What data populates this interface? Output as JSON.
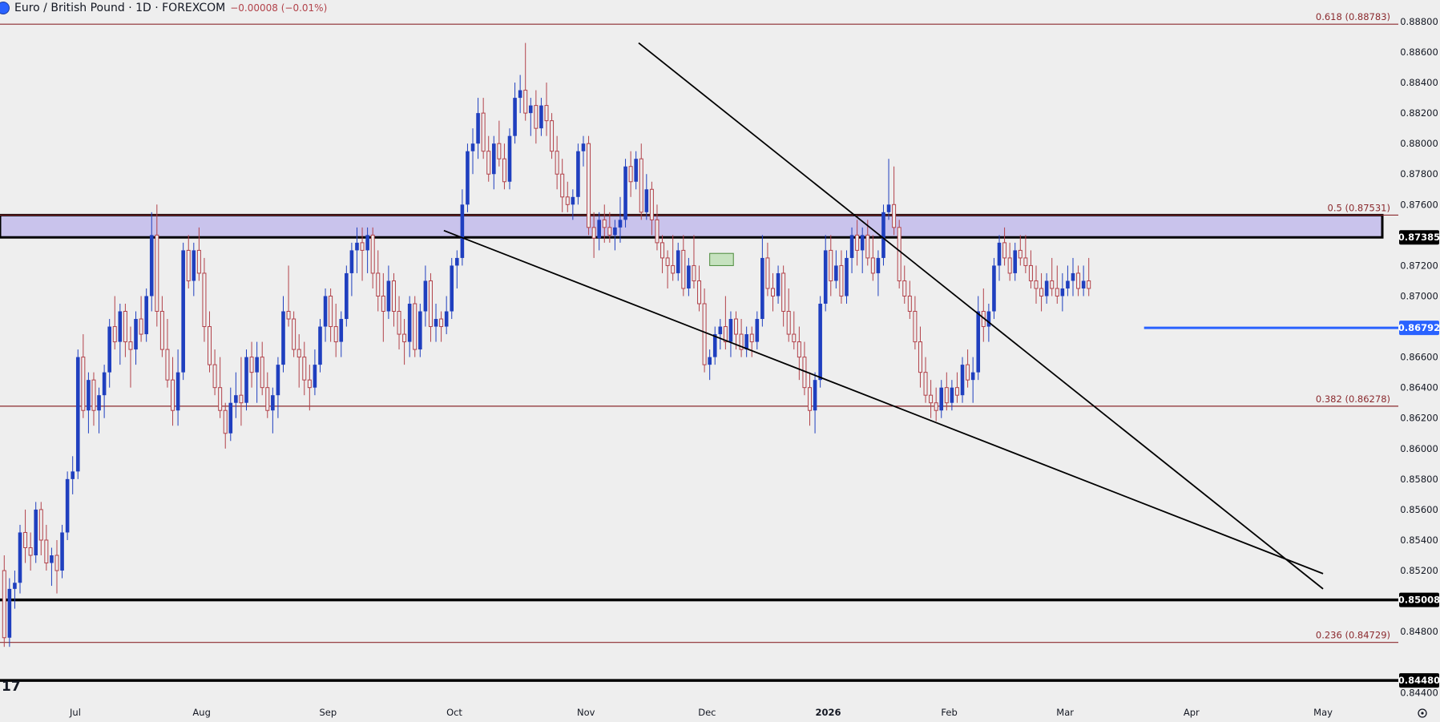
{
  "header": {
    "symbol": "Euro / British Pound · 1D · FOREXCOM",
    "change": "−0.00008 (−0.01%)",
    "logo_icon": "forexcom-logo"
  },
  "colors": {
    "background": "#eeeeee",
    "up_candle": "#1f3fbf",
    "down_candle": "#b2424a",
    "fib_line": "#8b2a2e",
    "zone_fill": "#c9c3ec",
    "support_blue": "#2962ff"
  },
  "chart_data": {
    "type": "candlestick",
    "symbol": "EUR/GBP",
    "timeframe": "1D",
    "ylim": [
      0.8437,
      0.8891
    ],
    "y_ticks": [
      "0.88800",
      "0.88600",
      "0.88400",
      "0.88200",
      "0.88000",
      "0.87800",
      "0.87600",
      "0.87200",
      "0.87000",
      "0.86600",
      "0.86400",
      "0.86200",
      "0.86000",
      "0.85800",
      "0.85600",
      "0.85400",
      "0.85200",
      "0.84800",
      "0.84400"
    ],
    "x_ticks": [
      "Jul",
      "Aug",
      "Sep",
      "Oct",
      "Nov",
      "Dec",
      "2026",
      "Feb",
      "Mar",
      "Apr",
      "May"
    ],
    "x_tick_bars": [
      14,
      38,
      62,
      86,
      111,
      134,
      157,
      180,
      202,
      226,
      251
    ],
    "price_badges": [
      {
        "label": "0.87385",
        "value": 0.87385,
        "style": "dark"
      },
      {
        "label": "0.86792",
        "value": 0.86792,
        "style": "blue"
      },
      {
        "label": "0.85008",
        "value": 0.85008,
        "style": "dark"
      },
      {
        "label": "0.84480",
        "value": 0.8448,
        "style": "dark"
      }
    ],
    "fib_levels": [
      {
        "label": "0.618 (0.88783)",
        "value": 0.88783
      },
      {
        "label": "0.5 (0.87531)",
        "value": 0.87531
      },
      {
        "label": "0.382 (0.86278)",
        "value": 0.86278
      },
      {
        "label": "0.236 (0.84729)",
        "value": 0.84729
      }
    ],
    "resistance_zone": [
      0.87385,
      0.87531
    ],
    "horizontal_lines": [
      {
        "value": 0.85008,
        "style": "black"
      },
      {
        "value": 0.8448,
        "style": "black"
      }
    ],
    "support_line": {
      "value": 0.86792,
      "from_bar": 217
    },
    "trendlines": [
      {
        "bar1": 121,
        "price1": 0.8866,
        "bar2": 251,
        "price2": 0.8508
      },
      {
        "bar1": 84,
        "price1": 0.8743,
        "bar2": 251,
        "price2": 0.8518
      }
    ],
    "highlight_box": {
      "bar1": 134.5,
      "bar2": 139,
      "price_top": 0.8728,
      "price_bottom": 0.872
    },
    "candles": [
      [
        0.852,
        0.853,
        0.847,
        0.8476
      ],
      [
        0.8476,
        0.8515,
        0.847,
        0.8508
      ],
      [
        0.8508,
        0.852,
        0.8495,
        0.8512
      ],
      [
        0.8512,
        0.855,
        0.8505,
        0.8545
      ],
      [
        0.8545,
        0.856,
        0.8525,
        0.8535
      ],
      [
        0.8535,
        0.8545,
        0.852,
        0.853
      ],
      [
        0.853,
        0.8565,
        0.8525,
        0.856
      ],
      [
        0.856,
        0.8565,
        0.853,
        0.854
      ],
      [
        0.854,
        0.855,
        0.852,
        0.8525
      ],
      [
        0.8525,
        0.8535,
        0.851,
        0.853
      ],
      [
        0.853,
        0.854,
        0.8505,
        0.852
      ],
      [
        0.852,
        0.855,
        0.8515,
        0.8545
      ],
      [
        0.8545,
        0.8585,
        0.854,
        0.858
      ],
      [
        0.858,
        0.8595,
        0.857,
        0.8585
      ],
      [
        0.8585,
        0.8665,
        0.858,
        0.866
      ],
      [
        0.866,
        0.8675,
        0.862,
        0.8625
      ],
      [
        0.8625,
        0.865,
        0.861,
        0.8645
      ],
      [
        0.8645,
        0.865,
        0.8615,
        0.8625
      ],
      [
        0.8625,
        0.864,
        0.861,
        0.8635
      ],
      [
        0.8635,
        0.8655,
        0.862,
        0.865
      ],
      [
        0.865,
        0.8685,
        0.864,
        0.868
      ],
      [
        0.868,
        0.87,
        0.8665,
        0.867
      ],
      [
        0.867,
        0.8695,
        0.8655,
        0.869
      ],
      [
        0.869,
        0.8695,
        0.866,
        0.867
      ],
      [
        0.867,
        0.868,
        0.864,
        0.8665
      ],
      [
        0.8665,
        0.869,
        0.8655,
        0.8685
      ],
      [
        0.8685,
        0.87,
        0.867,
        0.8675
      ],
      [
        0.8675,
        0.8705,
        0.867,
        0.87
      ],
      [
        0.87,
        0.8755,
        0.869,
        0.874
      ],
      [
        0.874,
        0.876,
        0.868,
        0.869
      ],
      [
        0.869,
        0.87,
        0.866,
        0.8665
      ],
      [
        0.8665,
        0.8685,
        0.864,
        0.8645
      ],
      [
        0.8645,
        0.866,
        0.8615,
        0.8625
      ],
      [
        0.8625,
        0.8665,
        0.8615,
        0.865
      ],
      [
        0.865,
        0.8735,
        0.8645,
        0.873
      ],
      [
        0.873,
        0.874,
        0.8705,
        0.871
      ],
      [
        0.871,
        0.8735,
        0.87,
        0.873
      ],
      [
        0.873,
        0.8745,
        0.871,
        0.8715
      ],
      [
        0.8715,
        0.8725,
        0.867,
        0.868
      ],
      [
        0.868,
        0.869,
        0.865,
        0.8655
      ],
      [
        0.8655,
        0.8665,
        0.8635,
        0.864
      ],
      [
        0.864,
        0.866,
        0.862,
        0.8625
      ],
      [
        0.8625,
        0.863,
        0.86,
        0.861
      ],
      [
        0.861,
        0.864,
        0.8605,
        0.863
      ],
      [
        0.863,
        0.865,
        0.862,
        0.8635
      ],
      [
        0.8635,
        0.866,
        0.8615,
        0.863
      ],
      [
        0.863,
        0.8665,
        0.8625,
        0.866
      ],
      [
        0.866,
        0.867,
        0.864,
        0.865
      ],
      [
        0.865,
        0.867,
        0.863,
        0.866
      ],
      [
        0.866,
        0.867,
        0.8635,
        0.864
      ],
      [
        0.864,
        0.865,
        0.862,
        0.8625
      ],
      [
        0.8625,
        0.864,
        0.861,
        0.8635
      ],
      [
        0.8635,
        0.866,
        0.862,
        0.8655
      ],
      [
        0.8655,
        0.87,
        0.865,
        0.869
      ],
      [
        0.869,
        0.872,
        0.868,
        0.8685
      ],
      [
        0.8685,
        0.869,
        0.866,
        0.8665
      ],
      [
        0.8665,
        0.8675,
        0.864,
        0.866
      ],
      [
        0.866,
        0.867,
        0.8635,
        0.8645
      ],
      [
        0.8645,
        0.8655,
        0.8625,
        0.864
      ],
      [
        0.864,
        0.8665,
        0.8635,
        0.8655
      ],
      [
        0.8655,
        0.8685,
        0.865,
        0.868
      ],
      [
        0.868,
        0.8705,
        0.867,
        0.87
      ],
      [
        0.87,
        0.8705,
        0.867,
        0.868
      ],
      [
        0.868,
        0.8695,
        0.866,
        0.867
      ],
      [
        0.867,
        0.869,
        0.866,
        0.8685
      ],
      [
        0.8685,
        0.872,
        0.868,
        0.8715
      ],
      [
        0.8715,
        0.8735,
        0.87,
        0.873
      ],
      [
        0.873,
        0.8745,
        0.8715,
        0.8735
      ],
      [
        0.8735,
        0.8745,
        0.871,
        0.873
      ],
      [
        0.873,
        0.8745,
        0.8715,
        0.874
      ],
      [
        0.874,
        0.8745,
        0.8705,
        0.8715
      ],
      [
        0.8715,
        0.873,
        0.869,
        0.87
      ],
      [
        0.87,
        0.8715,
        0.867,
        0.869
      ],
      [
        0.869,
        0.872,
        0.8685,
        0.871
      ],
      [
        0.871,
        0.8715,
        0.868,
        0.869
      ],
      [
        0.869,
        0.87,
        0.8665,
        0.8675
      ],
      [
        0.8675,
        0.8685,
        0.8655,
        0.867
      ],
      [
        0.867,
        0.87,
        0.866,
        0.8695
      ],
      [
        0.8695,
        0.87,
        0.866,
        0.8665
      ],
      [
        0.8665,
        0.8695,
        0.866,
        0.869
      ],
      [
        0.869,
        0.872,
        0.868,
        0.871
      ],
      [
        0.871,
        0.8715,
        0.867,
        0.868
      ],
      [
        0.868,
        0.8695,
        0.867,
        0.8685
      ],
      [
        0.8685,
        0.869,
        0.867,
        0.868
      ],
      [
        0.868,
        0.87,
        0.8675,
        0.869
      ],
      [
        0.869,
        0.8725,
        0.8685,
        0.872
      ],
      [
        0.872,
        0.873,
        0.8705,
        0.8725
      ],
      [
        0.8725,
        0.877,
        0.872,
        0.876
      ],
      [
        0.876,
        0.88,
        0.8755,
        0.8795
      ],
      [
        0.8795,
        0.881,
        0.878,
        0.88
      ],
      [
        0.88,
        0.883,
        0.879,
        0.882
      ],
      [
        0.882,
        0.883,
        0.879,
        0.8795
      ],
      [
        0.8795,
        0.8805,
        0.8775,
        0.878
      ],
      [
        0.878,
        0.8805,
        0.877,
        0.88
      ],
      [
        0.88,
        0.8815,
        0.8785,
        0.879
      ],
      [
        0.879,
        0.88,
        0.877,
        0.8775
      ],
      [
        0.8775,
        0.881,
        0.877,
        0.8805
      ],
      [
        0.8805,
        0.884,
        0.88,
        0.883
      ],
      [
        0.883,
        0.8845,
        0.882,
        0.8835
      ],
      [
        0.8835,
        0.8866,
        0.8815,
        0.882
      ],
      [
        0.882,
        0.883,
        0.8805,
        0.8825
      ],
      [
        0.8825,
        0.8835,
        0.88,
        0.881
      ],
      [
        0.881,
        0.883,
        0.8805,
        0.8825
      ],
      [
        0.8825,
        0.884,
        0.8805,
        0.8815
      ],
      [
        0.8815,
        0.882,
        0.879,
        0.8795
      ],
      [
        0.8795,
        0.8805,
        0.877,
        0.878
      ],
      [
        0.878,
        0.879,
        0.8755,
        0.8765
      ],
      [
        0.8765,
        0.8775,
        0.8755,
        0.876
      ],
      [
        0.876,
        0.877,
        0.875,
        0.8765
      ],
      [
        0.8765,
        0.88,
        0.876,
        0.8795
      ],
      [
        0.8795,
        0.8805,
        0.8785,
        0.88
      ],
      [
        0.88,
        0.8805,
        0.874,
        0.8745
      ],
      [
        0.8745,
        0.8755,
        0.8725,
        0.8738
      ],
      [
        0.8738,
        0.8755,
        0.873,
        0.875
      ],
      [
        0.875,
        0.876,
        0.8735,
        0.8745
      ],
      [
        0.8745,
        0.8755,
        0.8735,
        0.874
      ],
      [
        0.874,
        0.875,
        0.873,
        0.8745
      ],
      [
        0.8745,
        0.8765,
        0.8735,
        0.875
      ],
      [
        0.875,
        0.879,
        0.8745,
        0.8785
      ],
      [
        0.8785,
        0.8795,
        0.8765,
        0.8775
      ],
      [
        0.8775,
        0.8795,
        0.877,
        0.879
      ],
      [
        0.879,
        0.88,
        0.875,
        0.8755
      ],
      [
        0.8755,
        0.878,
        0.875,
        0.877
      ],
      [
        0.877,
        0.8775,
        0.874,
        0.875
      ],
      [
        0.875,
        0.876,
        0.873,
        0.8735
      ],
      [
        0.8735,
        0.874,
        0.8715,
        0.8725
      ],
      [
        0.8725,
        0.873,
        0.8705,
        0.872
      ],
      [
        0.872,
        0.874,
        0.871,
        0.8715
      ],
      [
        0.8715,
        0.8735,
        0.871,
        0.873
      ],
      [
        0.873,
        0.874,
        0.87,
        0.8705
      ],
      [
        0.8705,
        0.8725,
        0.87,
        0.872
      ],
      [
        0.872,
        0.874,
        0.8705,
        0.871
      ],
      [
        0.871,
        0.872,
        0.869,
        0.8695
      ],
      [
        0.8695,
        0.8705,
        0.865,
        0.8655
      ],
      [
        0.8655,
        0.8665,
        0.8645,
        0.866
      ],
      [
        0.866,
        0.868,
        0.8655,
        0.8675
      ],
      [
        0.8675,
        0.8685,
        0.8665,
        0.868
      ],
      [
        0.868,
        0.87,
        0.8665,
        0.867
      ],
      [
        0.867,
        0.869,
        0.866,
        0.8685
      ],
      [
        0.8685,
        0.869,
        0.8665,
        0.8675
      ],
      [
        0.8675,
        0.8685,
        0.866,
        0.8665
      ],
      [
        0.8665,
        0.868,
        0.866,
        0.8675
      ],
      [
        0.8675,
        0.868,
        0.866,
        0.867
      ],
      [
        0.867,
        0.869,
        0.8665,
        0.8685
      ],
      [
        0.8685,
        0.874,
        0.868,
        0.8725
      ],
      [
        0.8725,
        0.8735,
        0.87,
        0.8705
      ],
      [
        0.8705,
        0.8715,
        0.869,
        0.87
      ],
      [
        0.87,
        0.872,
        0.8695,
        0.8715
      ],
      [
        0.8715,
        0.872,
        0.868,
        0.869
      ],
      [
        0.869,
        0.8705,
        0.867,
        0.8675
      ],
      [
        0.8675,
        0.869,
        0.8665,
        0.867
      ],
      [
        0.867,
        0.868,
        0.8645,
        0.866
      ],
      [
        0.866,
        0.867,
        0.8635,
        0.864
      ],
      [
        0.864,
        0.865,
        0.8615,
        0.8625
      ],
      [
        0.8625,
        0.865,
        0.861,
        0.8645
      ],
      [
        0.8645,
        0.87,
        0.864,
        0.8695
      ],
      [
        0.8695,
        0.874,
        0.869,
        0.873
      ],
      [
        0.873,
        0.874,
        0.87,
        0.871
      ],
      [
        0.871,
        0.873,
        0.8705,
        0.872
      ],
      [
        0.872,
        0.873,
        0.8695,
        0.87
      ],
      [
        0.87,
        0.873,
        0.8695,
        0.8725
      ],
      [
        0.8725,
        0.8745,
        0.8715,
        0.874
      ],
      [
        0.874,
        0.875,
        0.872,
        0.873
      ],
      [
        0.873,
        0.8745,
        0.8715,
        0.874
      ],
      [
        0.874,
        0.875,
        0.872,
        0.8725
      ],
      [
        0.8725,
        0.874,
        0.871,
        0.8715
      ],
      [
        0.8715,
        0.873,
        0.87,
        0.8725
      ],
      [
        0.8725,
        0.876,
        0.872,
        0.8755
      ],
      [
        0.8755,
        0.879,
        0.875,
        0.876
      ],
      [
        0.876,
        0.8785,
        0.874,
        0.8745
      ],
      [
        0.8745,
        0.875,
        0.8705,
        0.871
      ],
      [
        0.871,
        0.872,
        0.8695,
        0.87
      ],
      [
        0.87,
        0.871,
        0.8685,
        0.869
      ],
      [
        0.869,
        0.87,
        0.8665,
        0.867
      ],
      [
        0.867,
        0.868,
        0.864,
        0.865
      ],
      [
        0.865,
        0.866,
        0.863,
        0.8635
      ],
      [
        0.8635,
        0.8645,
        0.862,
        0.863
      ],
      [
        0.863,
        0.864,
        0.8618,
        0.8625
      ],
      [
        0.8625,
        0.8645,
        0.862,
        0.864
      ],
      [
        0.864,
        0.865,
        0.8625,
        0.863
      ],
      [
        0.863,
        0.8645,
        0.8625,
        0.864
      ],
      [
        0.864,
        0.865,
        0.863,
        0.8635
      ],
      [
        0.8635,
        0.866,
        0.863,
        0.8655
      ],
      [
        0.8655,
        0.8665,
        0.864,
        0.8645
      ],
      [
        0.8645,
        0.866,
        0.863,
        0.865
      ],
      [
        0.865,
        0.87,
        0.8645,
        0.869
      ],
      [
        0.869,
        0.8705,
        0.867,
        0.868
      ],
      [
        0.868,
        0.8695,
        0.867,
        0.869
      ],
      [
        0.869,
        0.8725,
        0.8685,
        0.872
      ],
      [
        0.872,
        0.874,
        0.871,
        0.8735
      ],
      [
        0.8735,
        0.8745,
        0.872,
        0.8725
      ],
      [
        0.8725,
        0.8735,
        0.871,
        0.8715
      ],
      [
        0.8715,
        0.8735,
        0.871,
        0.873
      ],
      [
        0.873,
        0.874,
        0.872,
        0.8725
      ],
      [
        0.8725,
        0.874,
        0.8715,
        0.872
      ],
      [
        0.872,
        0.873,
        0.8705,
        0.871
      ],
      [
        0.871,
        0.872,
        0.8695,
        0.8705
      ],
      [
        0.8705,
        0.8715,
        0.869,
        0.87
      ],
      [
        0.87,
        0.8715,
        0.8695,
        0.871
      ],
      [
        0.871,
        0.8725,
        0.87,
        0.8705
      ],
      [
        0.8705,
        0.872,
        0.8695,
        0.87
      ],
      [
        0.87,
        0.8715,
        0.869,
        0.8705
      ],
      [
        0.8705,
        0.872,
        0.87,
        0.871
      ],
      [
        0.871,
        0.8725,
        0.87,
        0.8715
      ],
      [
        0.8715,
        0.872,
        0.87,
        0.8705
      ],
      [
        0.8705,
        0.872,
        0.87,
        0.871
      ],
      [
        0.871,
        0.8725,
        0.87,
        0.8705
      ]
    ]
  }
}
